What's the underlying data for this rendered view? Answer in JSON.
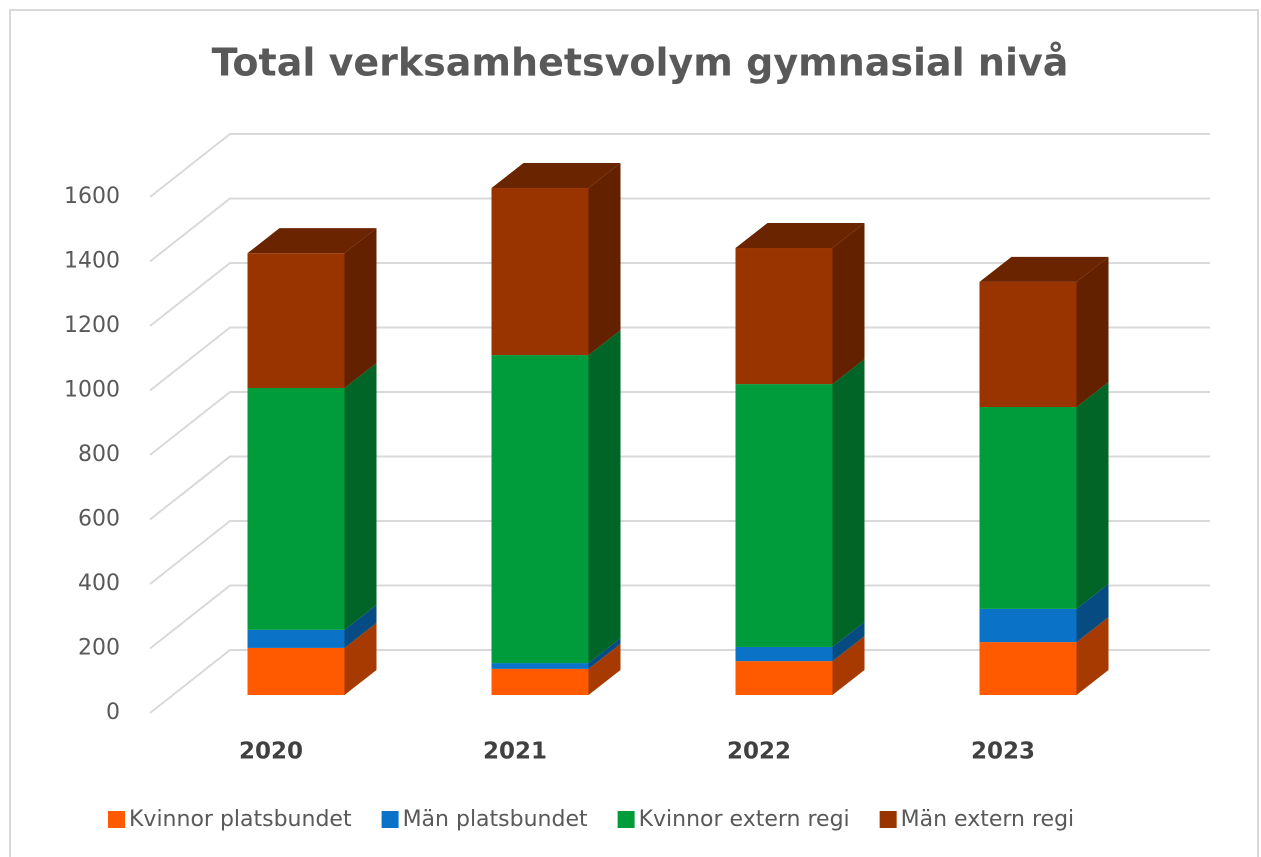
{
  "chart_data": {
    "type": "bar3d_stacked",
    "title": "Total verksamhetsvolym gymnasial nivå",
    "categories": [
      "2020",
      "2021",
      "2022",
      "2023"
    ],
    "series": [
      {
        "name": "Kvinnor platsbundet",
        "color": "#ff5a00",
        "values": [
          146,
          81,
          105,
          164
        ]
      },
      {
        "name": "Män platsbundet",
        "color": "#0a73c8",
        "values": [
          56,
          18,
          44,
          103
        ]
      },
      {
        "name": "Kvinnor extern regi",
        "color": "#009c3b",
        "values": [
          750,
          955,
          815,
          626
        ]
      },
      {
        "name": "Män extern regi",
        "color": "#993300",
        "values": [
          418,
          518,
          422,
          388
        ]
      }
    ],
    "ylim": [
      0,
      1800
    ],
    "yticks": [
      0,
      200,
      400,
      600,
      800,
      1000,
      1200,
      1400,
      1600
    ],
    "grid": true,
    "legend": "bottom"
  }
}
